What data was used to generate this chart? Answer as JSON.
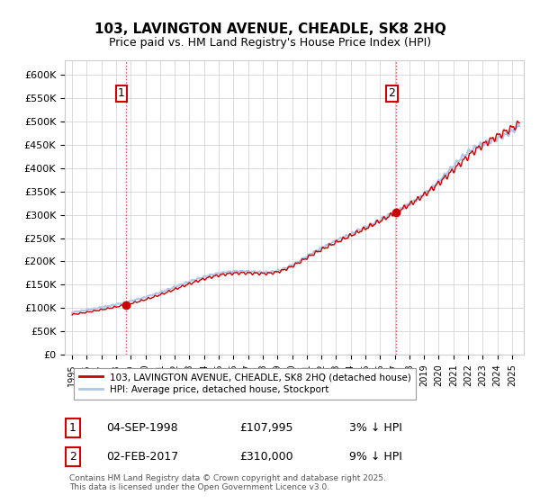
{
  "title": "103, LAVINGTON AVENUE, CHEADLE, SK8 2HQ",
  "subtitle": "Price paid vs. HM Land Registry's House Price Index (HPI)",
  "legend_line1": "103, LAVINGTON AVENUE, CHEADLE, SK8 2HQ (detached house)",
  "legend_line2": "HPI: Average price, detached house, Stockport",
  "sale1_label": "1",
  "sale1_date": "04-SEP-1998",
  "sale1_price": "£107,995",
  "sale1_note": "3% ↓ HPI",
  "sale2_label": "2",
  "sale2_date": "02-FEB-2017",
  "sale2_price": "£310,000",
  "sale2_note": "9% ↓ HPI",
  "footer": "Contains HM Land Registry data © Crown copyright and database right 2025.\nThis data is licensed under the Open Government Licence v3.0.",
  "hpi_color": "#aec6e8",
  "price_color": "#cc0000",
  "vline_color": "#cc0000",
  "marker_color": "#cc0000",
  "background_color": "#ffffff",
  "ylim": [
    0,
    630000
  ],
  "yticks": [
    0,
    50000,
    100000,
    150000,
    200000,
    250000,
    300000,
    350000,
    400000,
    450000,
    500000,
    550000,
    600000
  ],
  "start_year": 1995,
  "end_year": 2025
}
